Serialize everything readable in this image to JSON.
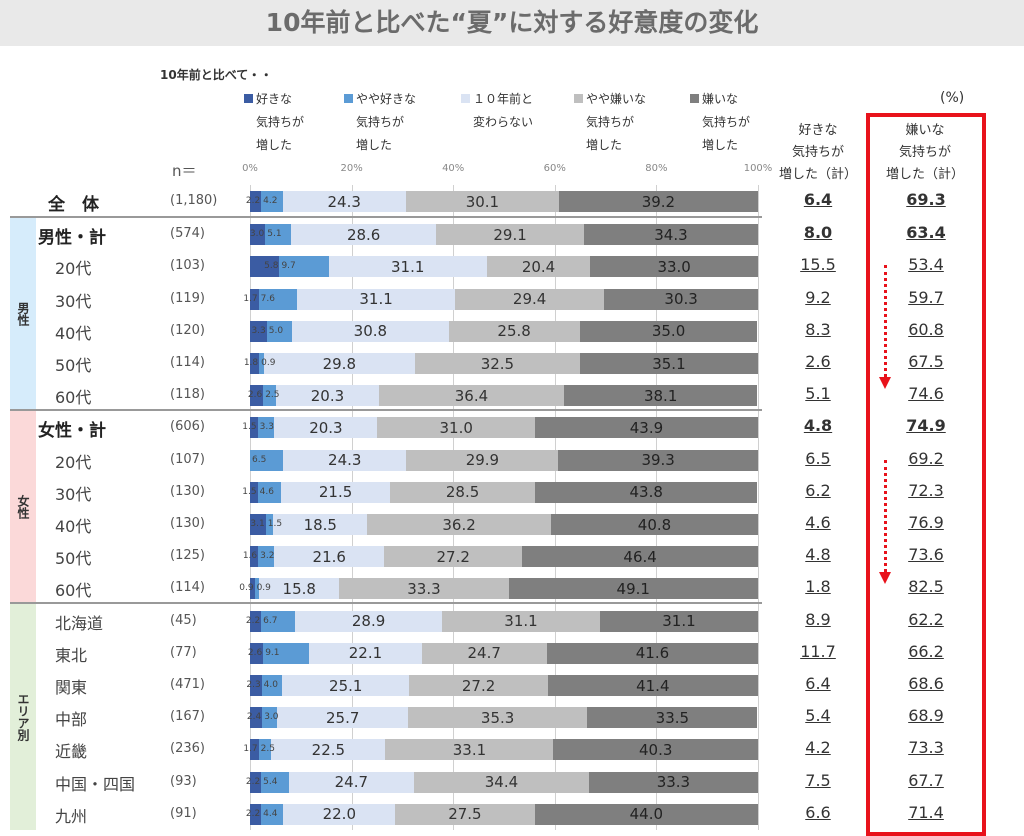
{
  "chart_data": {
    "type": "bar",
    "title": "10年前と比べた“夏”に対する好意度の変化",
    "subtitle": "10年前と比べて・・",
    "unit": "(%)",
    "n_label": "n＝",
    "xticks": [
      "0%",
      "20%",
      "40%",
      "60%",
      "80%",
      "100%"
    ],
    "xlim": [
      0,
      100
    ],
    "legend": [
      {
        "l1": "好きな",
        "l2": "気持ちが",
        "l3": "増した",
        "color": "#3b5ca3"
      },
      {
        "l1": "やや好きな",
        "l2": "気持ちが",
        "l3": "増した",
        "color": "#5b9bd5"
      },
      {
        "l1": "１０年前と",
        "l2": "変わらない",
        "l3": "",
        "color": "#dae3f3"
      },
      {
        "l1": "やや嫌いな",
        "l2": "気持ちが",
        "l3": "増した",
        "color": "#bfbfbf"
      },
      {
        "l1": "嫌いな",
        "l2": "気持ちが",
        "l3": "増した",
        "color": "#7f7f7f"
      }
    ],
    "total_headers": {
      "like": [
        "好きな",
        "気持ちが",
        "増した（計）"
      ],
      "dislike": [
        "嫌いな",
        "気持ちが",
        "増した（計）"
      ]
    },
    "sections": [
      {
        "label": "男性"
      },
      {
        "label": "女性"
      },
      {
        "label": "エリア別"
      }
    ],
    "rows": [
      {
        "label": "全　体",
        "n": "(1,180)",
        "values": [
          2.2,
          4.2,
          24.3,
          30.1,
          39.2
        ],
        "like": "6.4",
        "dislike": "69.3",
        "bold": true
      },
      {
        "label": "男性・計",
        "n": "(574)",
        "values": [
          3.0,
          5.1,
          28.6,
          29.1,
          34.3
        ],
        "like": "8.0",
        "dislike": "63.4",
        "bold": true
      },
      {
        "label": "20代",
        "n": "(103)",
        "values": [
          5.8,
          9.7,
          31.1,
          20.4,
          33.0
        ],
        "like": "15.5",
        "dislike": "53.4"
      },
      {
        "label": "30代",
        "n": "(119)",
        "values": [
          1.7,
          7.6,
          31.1,
          29.4,
          30.3
        ],
        "like": "9.2",
        "dislike": "59.7"
      },
      {
        "label": "40代",
        "n": "(120)",
        "values": [
          3.3,
          5.0,
          30.8,
          25.8,
          35.0
        ],
        "like": "8.3",
        "dislike": "60.8"
      },
      {
        "label": "50代",
        "n": "(114)",
        "values": [
          1.8,
          0.9,
          29.8,
          32.5,
          35.1
        ],
        "like": "2.6",
        "dislike": "67.5"
      },
      {
        "label": "60代",
        "n": "(118)",
        "values": [
          2.6,
          2.5,
          20.3,
          36.4,
          38.1
        ],
        "like": "5.1",
        "dislike": "74.6"
      },
      {
        "label": "女性・計",
        "n": "(606)",
        "values": [
          1.5,
          3.3,
          20.3,
          31.0,
          43.9
        ],
        "like": "4.8",
        "dislike": "74.9",
        "bold": true
      },
      {
        "label": "20代",
        "n": "(107)",
        "values": [
          0,
          6.5,
          24.3,
          29.9,
          39.3
        ],
        "like": "6.5",
        "dislike": "69.2"
      },
      {
        "label": "30代",
        "n": "(130)",
        "values": [
          1.5,
          4.6,
          21.5,
          28.5,
          43.8
        ],
        "like": "6.2",
        "dislike": "72.3"
      },
      {
        "label": "40代",
        "n": "(130)",
        "values": [
          3.1,
          1.5,
          18.5,
          36.2,
          40.8
        ],
        "like": "4.6",
        "dislike": "76.9"
      },
      {
        "label": "50代",
        "n": "(125)",
        "values": [
          1.6,
          3.2,
          21.6,
          27.2,
          46.4
        ],
        "like": "4.8",
        "dislike": "73.6"
      },
      {
        "label": "60代",
        "n": "(114)",
        "values": [
          0.9,
          0.9,
          15.8,
          33.3,
          49.1
        ],
        "like": "1.8",
        "dislike": "82.5"
      },
      {
        "label": "北海道",
        "n": "(45)",
        "values": [
          2.2,
          6.7,
          28.9,
          31.1,
          31.1
        ],
        "like": "8.9",
        "dislike": "62.2"
      },
      {
        "label": "東北",
        "n": "(77)",
        "values": [
          2.6,
          9.1,
          22.1,
          24.7,
          41.6
        ],
        "like": "11.7",
        "dislike": "66.2"
      },
      {
        "label": "関東",
        "n": "(471)",
        "values": [
          2.3,
          4.0,
          25.1,
          27.2,
          41.4
        ],
        "like": "6.4",
        "dislike": "68.6"
      },
      {
        "label": "中部",
        "n": "(167)",
        "values": [
          2.4,
          3.0,
          25.7,
          35.3,
          33.5
        ],
        "like": "5.4",
        "dislike": "68.9"
      },
      {
        "label": "近畿",
        "n": "(236)",
        "values": [
          1.7,
          2.5,
          22.5,
          33.1,
          40.3
        ],
        "like": "4.2",
        "dislike": "73.3"
      },
      {
        "label": "中国・四国",
        "n": "(93)",
        "values": [
          2.2,
          5.4,
          24.7,
          34.4,
          33.3
        ],
        "like": "7.5",
        "dislike": "67.7"
      },
      {
        "label": "九州",
        "n": "(91)",
        "values": [
          2.2,
          4.4,
          22.0,
          27.5,
          44.0
        ],
        "like": "6.6",
        "dislike": "71.4"
      }
    ]
  }
}
